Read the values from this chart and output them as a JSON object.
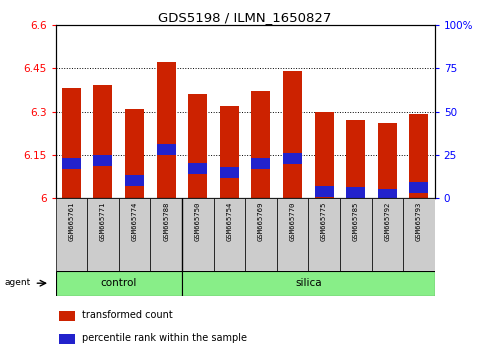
{
  "title": "GDS5198 / ILMN_1650827",
  "samples": [
    "GSM665761",
    "GSM665771",
    "GSM665774",
    "GSM665788",
    "GSM665750",
    "GSM665754",
    "GSM665769",
    "GSM665770",
    "GSM665775",
    "GSM665785",
    "GSM665792",
    "GSM665793"
  ],
  "transformed_count": [
    6.38,
    6.39,
    6.31,
    6.47,
    6.36,
    6.32,
    6.37,
    6.44,
    6.3,
    6.27,
    6.26,
    6.29
  ],
  "percentile_rank": [
    20,
    22,
    10,
    28,
    17,
    15,
    20,
    23,
    4,
    3,
    2,
    6
  ],
  "group_boundary": 4,
  "y_min": 6.0,
  "y_max": 6.6,
  "y_ticks": [
    6.0,
    6.15,
    6.3,
    6.45,
    6.6
  ],
  "y_tick_labels": [
    "6",
    "6.15",
    "6.3",
    "6.45",
    "6.6"
  ],
  "y2_ticks": [
    0,
    25,
    50,
    75,
    100
  ],
  "y2_tick_labels": [
    "0",
    "25",
    "50",
    "75",
    "100%"
  ],
  "bar_color": "#cc2200",
  "blue_color": "#2222cc",
  "green_color": "#88ee88",
  "gray_color": "#cccccc",
  "bar_width": 0.6,
  "blue_bar_height": 0.008
}
